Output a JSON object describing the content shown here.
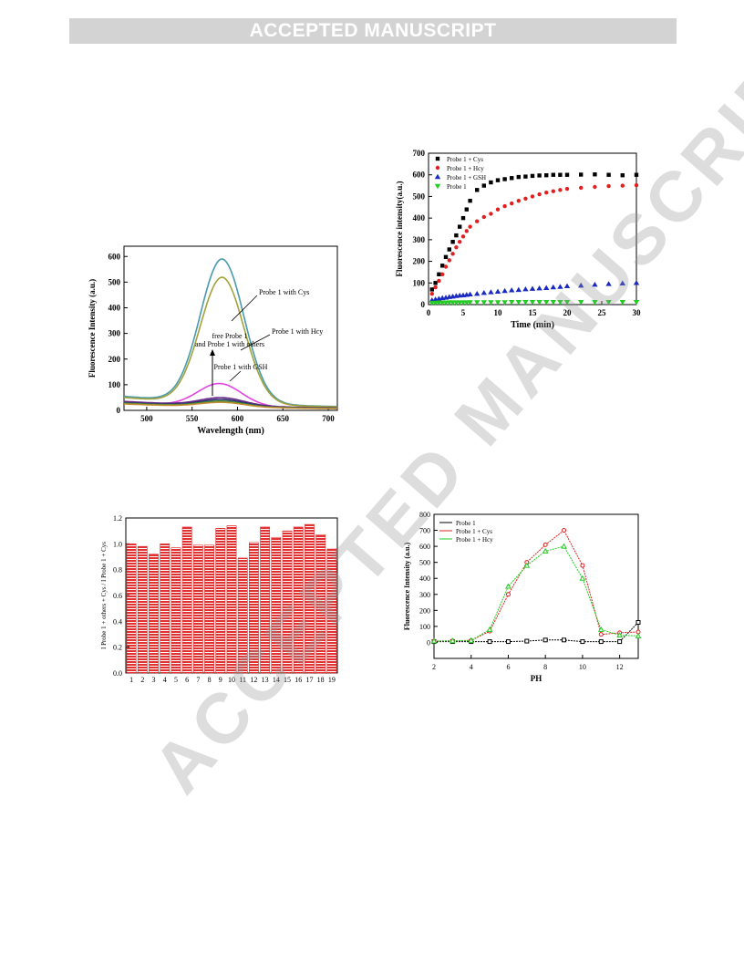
{
  "banner": {
    "text": "ACCEPTED MANUSCRIPT"
  },
  "watermark": {
    "text": "ACCEPTED MANUSCRIPT"
  },
  "chart_data": [
    {
      "type": "line",
      "xlabel": "Wavelength (nm)",
      "ylabel": "Fluorescence Intensity (a.u.)",
      "xlim": [
        475,
        710
      ],
      "ylim": [
        0,
        640
      ],
      "xticks": [
        500,
        550,
        600,
        650,
        700
      ],
      "yticks": [
        0,
        100,
        200,
        300,
        400,
        500,
        600
      ],
      "series": [
        {
          "name": "Probe 1 with Cys",
          "color": "#4a9aae",
          "peak": 578,
          "x": 583,
          "base": 55
        },
        {
          "name": "Probe 1 with Hcy",
          "color": "#a3a23a",
          "peak": 508,
          "x": 583,
          "base": 50
        },
        {
          "name": "Probe 1 with GSH",
          "color": "#e046e0",
          "peak": 98,
          "x": 580,
          "base": 30
        },
        {
          "name": "free Probe 1",
          "color": "#6a2a8a",
          "peak": 42,
          "x": 582,
          "base": 35
        },
        {
          "name": "others",
          "color": "#2b2b6b",
          "peak": 36,
          "x": 582,
          "base": 30
        },
        {
          "name": "others",
          "color": "#3a8a3a",
          "peak": 30,
          "x": 582,
          "base": 28
        },
        {
          "name": "others",
          "color": "#c08a30",
          "peak": 26,
          "x": 582,
          "base": 25
        }
      ],
      "annotations": [
        {
          "text": "Probe 1 with Cys"
        },
        {
          "text": "Probe 1 with Hcy"
        },
        {
          "text": "free Probe 1"
        },
        {
          "text": "and Probe 1 with others"
        },
        {
          "text": "Probe 1 with GSH"
        }
      ]
    },
    {
      "type": "scatter",
      "xlabel": "Time (min)",
      "ylabel": "Fluorescence intensity(a.u.)",
      "xlim": [
        0,
        30
      ],
      "ylim": [
        0,
        700
      ],
      "xticks": [
        0,
        5,
        10,
        15,
        20,
        25,
        30
      ],
      "yticks": [
        0,
        100,
        200,
        300,
        400,
        500,
        600,
        700
      ],
      "legend": "top-left",
      "series": [
        {
          "name": "Probe 1 + Cys",
          "marker": "square",
          "color": "#000000",
          "x": [
            0.5,
            1,
            1.5,
            2,
            2.5,
            3,
            3.5,
            4,
            4.5,
            5,
            5.5,
            6,
            7,
            8,
            9,
            10,
            11,
            12,
            13,
            14,
            15,
            16,
            17,
            18,
            19,
            20,
            22,
            24,
            26,
            28,
            30
          ],
          "y": [
            70,
            100,
            140,
            180,
            220,
            255,
            290,
            320,
            360,
            400,
            440,
            480,
            530,
            550,
            565,
            575,
            580,
            585,
            590,
            592,
            595,
            597,
            598,
            600,
            600,
            600,
            601,
            602,
            600,
            598,
            600
          ]
        },
        {
          "name": "Probe 1 + Hcy",
          "marker": "circle",
          "color": "#e02020",
          "x": [
            0.5,
            1,
            1.5,
            2,
            2.5,
            3,
            3.5,
            4,
            4.5,
            5,
            5.5,
            6,
            7,
            8,
            9,
            10,
            11,
            12,
            13,
            14,
            15,
            16,
            17,
            18,
            19,
            20,
            22,
            24,
            26,
            28,
            30
          ],
          "y": [
            50,
            80,
            110,
            140,
            175,
            205,
            235,
            265,
            290,
            315,
            340,
            360,
            385,
            405,
            420,
            440,
            455,
            468,
            480,
            490,
            500,
            510,
            518,
            524,
            530,
            535,
            540,
            544,
            548,
            550,
            552
          ]
        },
        {
          "name": "Probe 1 + GSH",
          "marker": "triangle",
          "color": "#1a2ac0",
          "x": [
            0.5,
            1,
            1.5,
            2,
            2.5,
            3,
            3.5,
            4,
            4.5,
            5,
            5.5,
            6,
            7,
            8,
            9,
            10,
            11,
            12,
            13,
            14,
            15,
            16,
            17,
            18,
            19,
            20,
            22,
            24,
            26,
            28,
            30
          ],
          "y": [
            20,
            24,
            27,
            30,
            32,
            35,
            37,
            40,
            42,
            43,
            45,
            47,
            50,
            54,
            57,
            60,
            63,
            66,
            68,
            71,
            73,
            75,
            77,
            80,
            82,
            85,
            88,
            92,
            95,
            98,
            100
          ]
        },
        {
          "name": "Probe 1",
          "marker": "triangle-down",
          "color": "#22cc22",
          "x": [
            0.5,
            1,
            1.5,
            2,
            2.5,
            3,
            3.5,
            4,
            4.5,
            5,
            5.5,
            6,
            7,
            8,
            9,
            10,
            11,
            12,
            13,
            14,
            15,
            16,
            17,
            18,
            19,
            20,
            22,
            24,
            26,
            28,
            30
          ],
          "y": [
            8,
            8,
            9,
            9,
            9,
            10,
            10,
            10,
            10,
            10,
            10,
            11,
            11,
            11,
            11,
            11,
            11,
            12,
            12,
            12,
            12,
            12,
            12,
            12,
            12,
            12,
            12,
            12,
            12,
            12,
            12
          ]
        }
      ]
    },
    {
      "type": "bar",
      "ylabel": "I Probe 1 + others + Cys / I Probe 1 + Cys",
      "ylim": [
        0,
        1.2
      ],
      "yticks": [
        "0.0",
        "0.2",
        "0.4",
        "0.6",
        "0.8",
        "1.0",
        "1.2"
      ],
      "categories": [
        "1",
        "2",
        "3",
        "4",
        "5",
        "6",
        "7",
        "8",
        "9",
        "10",
        "11",
        "12",
        "13",
        "14",
        "15",
        "16",
        "17",
        "18",
        "19"
      ],
      "values": [
        1.0,
        0.98,
        0.92,
        1.0,
        0.97,
        1.13,
        0.99,
        0.99,
        1.12,
        1.14,
        0.89,
        1.01,
        1.13,
        1.05,
        1.1,
        1.13,
        1.15,
        1.07,
        0.96
      ],
      "bar_color": "#e03030"
    },
    {
      "type": "line",
      "xlabel": "PH",
      "ylabel": "Fluorescence Intensity (a.u.)",
      "xlim": [
        2,
        13
      ],
      "ylim": [
        -100,
        800
      ],
      "xticks": [
        2,
        4,
        6,
        8,
        10,
        12
      ],
      "yticks": [
        0,
        100,
        200,
        300,
        400,
        500,
        600,
        700,
        800
      ],
      "legend": "top-left",
      "series": [
        {
          "name": "Probe 1",
          "marker": "square",
          "color": "#000000",
          "x": [
            2,
            3,
            4,
            5,
            6,
            7,
            8,
            9,
            10,
            11,
            12,
            13
          ],
          "y": [
            5,
            5,
            5,
            5,
            5,
            8,
            15,
            15,
            5,
            5,
            5,
            125
          ]
        },
        {
          "name": "Probe 1 + Cys",
          "marker": "circle",
          "color": "#e02020",
          "x": [
            2,
            3,
            4,
            5,
            6,
            7,
            8,
            9,
            10,
            11,
            12,
            13
          ],
          "y": [
            8,
            10,
            12,
            70,
            300,
            500,
            610,
            700,
            480,
            50,
            60,
            65
          ]
        },
        {
          "name": "Probe 1 + Hcy",
          "marker": "triangle",
          "color": "#22cc22",
          "x": [
            2,
            3,
            4,
            5,
            6,
            7,
            8,
            9,
            10,
            11,
            12,
            13
          ],
          "y": [
            8,
            10,
            12,
            80,
            350,
            480,
            570,
            600,
            400,
            80,
            45,
            40
          ]
        }
      ]
    }
  ]
}
